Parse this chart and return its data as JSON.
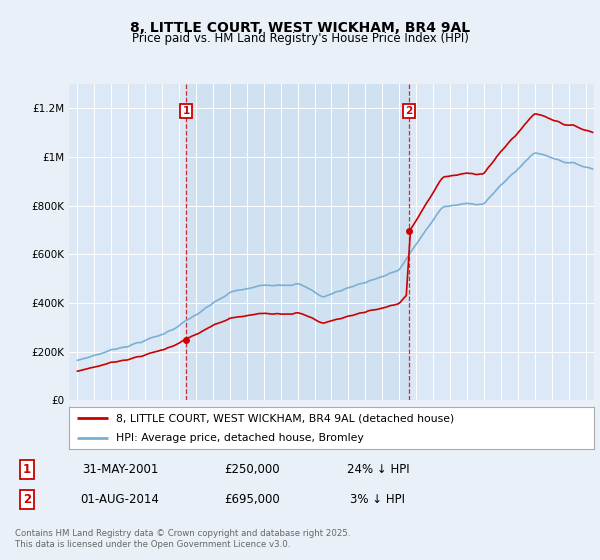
{
  "title": "8, LITTLE COURT, WEST WICKHAM, BR4 9AL",
  "subtitle": "Price paid vs. HM Land Registry's House Price Index (HPI)",
  "bg_color": "#eaf0f8",
  "plot_bg_color": "#dce8f5",
  "shade_color": "#ccdff0",
  "sale1": {
    "date_num": 2001.42,
    "price": 250000,
    "label": "1",
    "date_str": "31-MAY-2001",
    "pct": "24% ↓ HPI"
  },
  "sale2": {
    "date_num": 2014.58,
    "price": 695000,
    "label": "2",
    "date_str": "01-AUG-2014",
    "pct": "3% ↓ HPI"
  },
  "legend_line1": "8, LITTLE COURT, WEST WICKHAM, BR4 9AL (detached house)",
  "legend_line2": "HPI: Average price, detached house, Bromley",
  "footer": "Contains HM Land Registry data © Crown copyright and database right 2025.\nThis data is licensed under the Open Government Licence v3.0.",
  "ylabel_ticks": [
    "£0",
    "£200K",
    "£400K",
    "£600K",
    "£800K",
    "£1M",
    "£1.2M"
  ],
  "ytick_vals": [
    0,
    200000,
    400000,
    600000,
    800000,
    1000000,
    1200000
  ],
  "xmin": 1994.5,
  "xmax": 2025.5,
  "ymin": 0,
  "ymax": 1300000,
  "hpi_color": "#7ab0d4",
  "sale_color": "#cc0000",
  "sale_dot_color": "#cc0000"
}
